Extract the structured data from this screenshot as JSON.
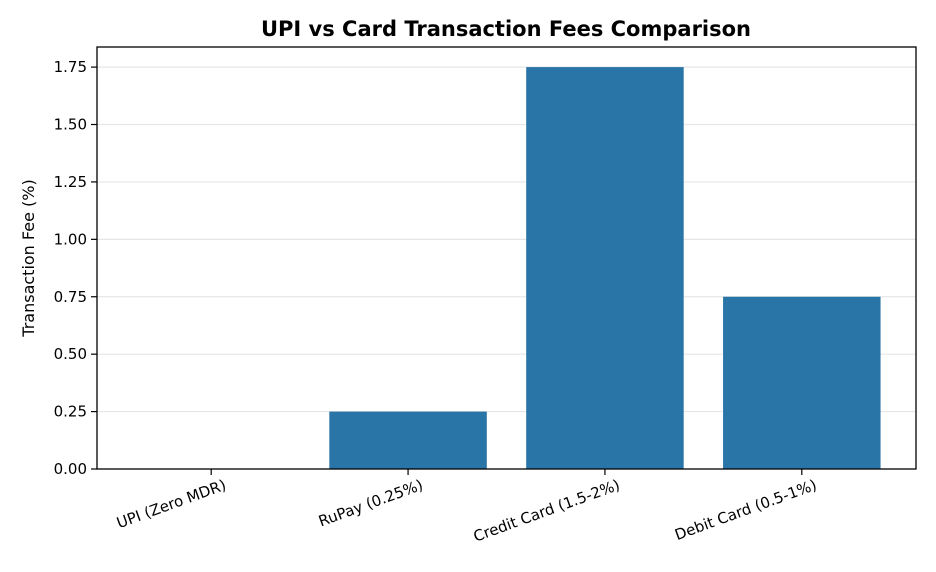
{
  "chart_data": {
    "type": "bar",
    "title": "UPI vs Card Transaction Fees Comparison",
    "xlabel": "",
    "ylabel": "Transaction Fee (%)",
    "categories": [
      "UPI (Zero MDR)",
      "RuPay (0.25%)",
      "Credit Card (1.5-2%)",
      "Debit Card (0.5-1%)"
    ],
    "values": [
      0,
      0.25,
      1.75,
      0.75
    ],
    "ylim": [
      0,
      1.8375
    ],
    "yticks": [
      "0.00",
      "0.25",
      "0.50",
      "0.75",
      "1.00",
      "1.25",
      "1.50",
      "1.75"
    ],
    "grid": "y-axis only",
    "legend": "none",
    "bar_color": "#2a75a8"
  }
}
